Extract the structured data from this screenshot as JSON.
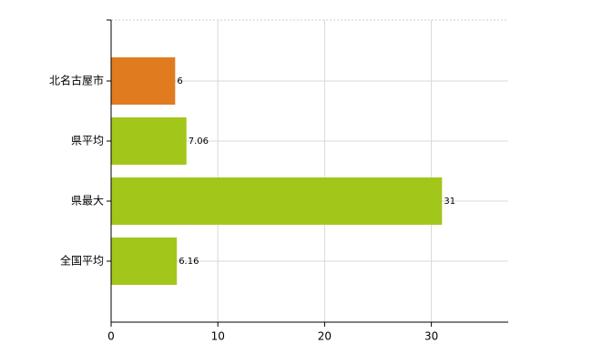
{
  "chart_data": {
    "type": "bar",
    "orientation": "horizontal",
    "categories": [
      "北名古屋市",
      "県平均",
      "県最大",
      "全国平均"
    ],
    "values": [
      6,
      7.06,
      31,
      6.16
    ],
    "colors": [
      "#e07b20",
      "#a3c61b",
      "#a3c61b",
      "#a3c61b"
    ],
    "xlim": [
      0,
      37.2
    ],
    "xticks": [
      0,
      10,
      20,
      30
    ],
    "grid": true
  }
}
